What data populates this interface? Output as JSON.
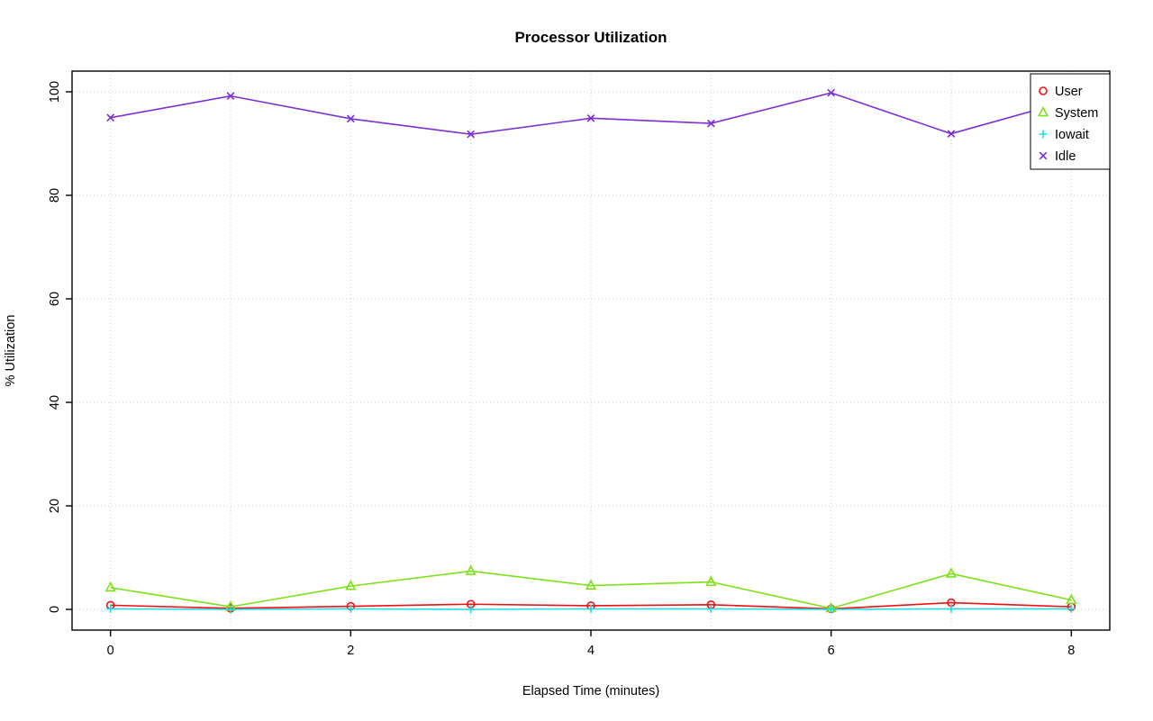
{
  "page": {
    "background": "#ffffff"
  },
  "chart_data": {
    "type": "line",
    "title": "Processor Utilization",
    "xlabel": "Elapsed Time (minutes)",
    "ylabel": "% Utilization",
    "x": [
      0,
      1,
      2,
      3,
      4,
      5,
      6,
      7,
      8
    ],
    "xlim": [
      0,
      8
    ],
    "ylim": [
      0,
      100
    ],
    "xticks": [
      0,
      2,
      4,
      6,
      8
    ],
    "yticks": [
      0,
      20,
      40,
      60,
      80,
      100
    ],
    "xgrid": [
      0,
      1,
      2,
      3,
      4,
      5,
      6,
      7,
      8
    ],
    "grid": true,
    "grid_style": "dotted",
    "grid_color": "#cccccc",
    "axis_color": "#000000",
    "legend_position": "top-right",
    "legend_entries": [
      "User",
      "System",
      "Iowait",
      "Idle"
    ],
    "series": [
      {
        "name": "User",
        "color": "#ee1111",
        "marker": "circle",
        "values": [
          0.8,
          0.2,
          0.6,
          1.0,
          0.7,
          0.9,
          0.1,
          1.3,
          0.5
        ]
      },
      {
        "name": "System",
        "color": "#7de019",
        "marker": "triangle",
        "values": [
          4.2,
          0.5,
          4.5,
          7.4,
          4.6,
          5.3,
          0.2,
          6.9,
          1.8
        ]
      },
      {
        "name": "Iowait",
        "color": "#25d9e0",
        "marker": "plus",
        "values": [
          0.1,
          0.0,
          0.1,
          0.0,
          0.1,
          0.1,
          0.0,
          0.1,
          0.1
        ]
      },
      {
        "name": "Idle",
        "color": "#7b2fd5",
        "marker": "x",
        "values": [
          95.0,
          99.2,
          94.8,
          91.8,
          94.9,
          93.9,
          99.8,
          91.9,
          98.4
        ]
      }
    ]
  }
}
